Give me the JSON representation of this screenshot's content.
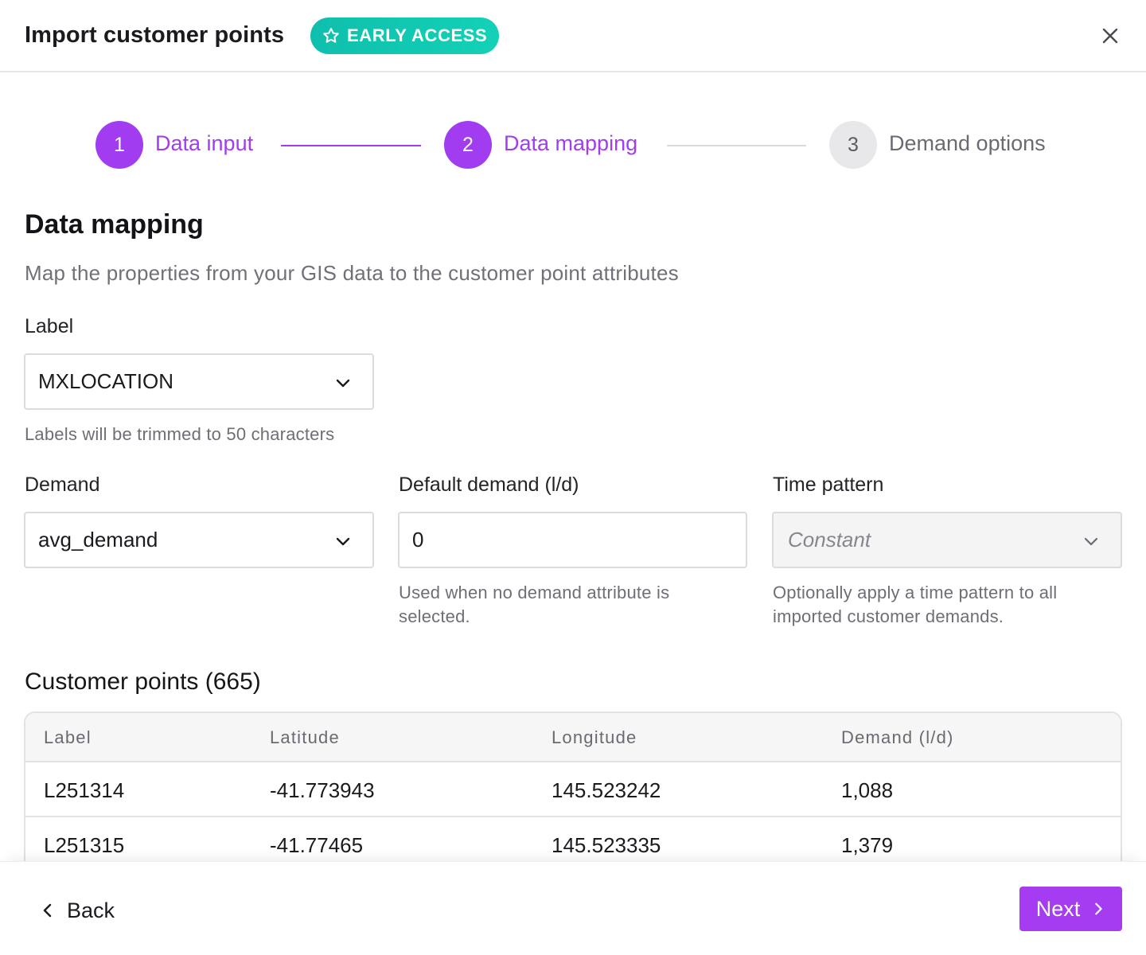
{
  "dialog": {
    "title": "Import customer points",
    "badge": "EARLY ACCESS"
  },
  "stepper": {
    "steps": [
      {
        "number": "1",
        "label": "Data input",
        "state": "complete"
      },
      {
        "number": "2",
        "label": "Data mapping",
        "state": "current"
      },
      {
        "number": "3",
        "label": "Demand options",
        "state": "upcoming"
      }
    ]
  },
  "section": {
    "title": "Data mapping",
    "description": "Map the properties from your GIS data to the customer point attributes"
  },
  "fields": {
    "label": {
      "label": "Label",
      "value": "MXLOCATION",
      "hint": "Labels will be trimmed to 50 characters"
    },
    "demand": {
      "label": "Demand",
      "value": "avg_demand"
    },
    "default_demand": {
      "label": "Default demand (l/d)",
      "value": "0",
      "hint_line1": "Used when no demand attribute is",
      "hint_line2": "selected."
    },
    "time_pattern": {
      "label": "Time pattern",
      "value": "Constant",
      "hint_line1": "Optionally apply a time pattern to all",
      "hint_line2": "imported customer demands."
    }
  },
  "table": {
    "title": "Customer points (665)",
    "columns": [
      "Label",
      "Latitude",
      "Longitude",
      "Demand (l/d)"
    ],
    "rows": [
      [
        "L251314",
        "-41.773943",
        "145.523242",
        "1,088"
      ],
      [
        "L251315",
        "-41.77465",
        "145.523335",
        "1,379"
      ]
    ]
  },
  "footer": {
    "back_label": "Back",
    "next_label": "Next"
  },
  "colors": {
    "accent": "#a13cf0",
    "badge": "#13c9b2"
  },
  "icons": {
    "badge": "star-icon",
    "close": "close-icon",
    "select": "chevron-down-icon",
    "back": "chevron-left-icon",
    "next": "chevron-right-icon"
  }
}
